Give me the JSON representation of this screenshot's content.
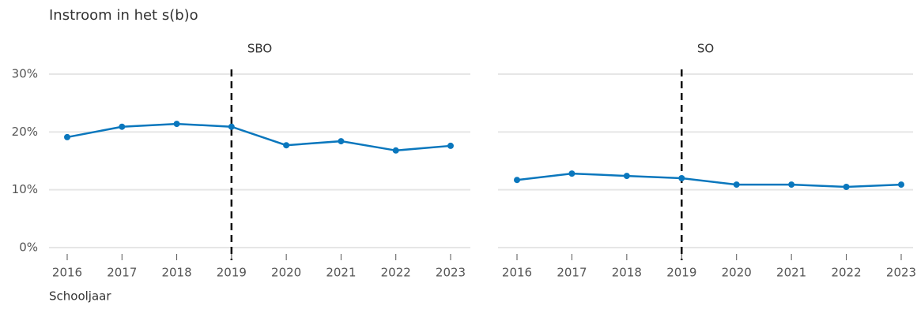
{
  "chart_data": {
    "type": "line",
    "title": "Instroom in het s(b)o",
    "x_label": "Schooljaar",
    "x": [
      2016,
      2017,
      2018,
      2019,
      2020,
      2021,
      2022,
      2023
    ],
    "xlim": [
      2016,
      2023
    ],
    "ylim": [
      0,
      30
    ],
    "yticks": [
      {
        "value": 0,
        "label": "0%"
      },
      {
        "value": 10,
        "label": "10%"
      },
      {
        "value": 20,
        "label": "20%"
      },
      {
        "value": 30,
        "label": "30%"
      }
    ],
    "vline": 2019,
    "color": "#0a77bd",
    "grid": true,
    "series": [
      {
        "name": "SBO",
        "values": [
          19.1,
          20.9,
          21.4,
          20.9,
          17.7,
          18.4,
          16.8,
          17.6
        ]
      },
      {
        "name": "SO",
        "values": [
          11.7,
          12.8,
          12.4,
          12.0,
          10.9,
          10.9,
          10.5,
          10.9
        ]
      }
    ]
  }
}
